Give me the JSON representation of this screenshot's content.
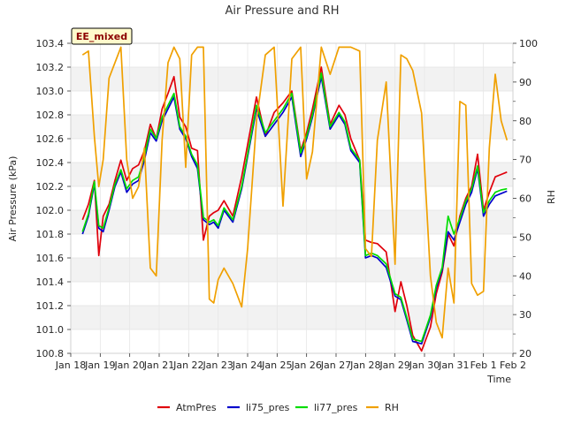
{
  "chart_data": {
    "type": "line",
    "title": "Air Pressure and RH",
    "xlabel": "Time",
    "ylabel_left": "Air Pressure (kPa)",
    "ylabel_right": "RH",
    "site_tag": "EE_mixed",
    "xlim": [
      0,
      15
    ],
    "ylim_left": [
      100.8,
      103.4
    ],
    "ylim_right": [
      20,
      100
    ],
    "x_ticks": [
      {
        "x": 0,
        "label": "Jan 18"
      },
      {
        "x": 1,
        "label": "Jan 19"
      },
      {
        "x": 2,
        "label": "Jan 20"
      },
      {
        "x": 3,
        "label": "Jan 21"
      },
      {
        "x": 4,
        "label": "Jan 22"
      },
      {
        "x": 5,
        "label": "Jan 23"
      },
      {
        "x": 6,
        "label": "Jan 24"
      },
      {
        "x": 7,
        "label": "Jan 25"
      },
      {
        "x": 8,
        "label": "Jan 26"
      },
      {
        "x": 9,
        "label": "Jan 27"
      },
      {
        "x": 10,
        "label": "Jan 28"
      },
      {
        "x": 11,
        "label": "Jan 29"
      },
      {
        "x": 12,
        "label": "Jan 30"
      },
      {
        "x": 13,
        "label": "Jan 31"
      },
      {
        "x": 14,
        "label": "Feb 1"
      },
      {
        "x": 15,
        "label": "Feb 2"
      }
    ],
    "y_ticks_left": [
      "100.8",
      "101.0",
      "101.2",
      "101.4",
      "101.6",
      "101.8",
      "102.0",
      "102.2",
      "102.4",
      "102.6",
      "102.8",
      "103.0",
      "103.2",
      "103.4"
    ],
    "y_ticks_right": [
      "20",
      "30",
      "40",
      "50",
      "60",
      "70",
      "80",
      "90",
      "100"
    ],
    "x": [
      0.4,
      0.6,
      0.8,
      0.95,
      1.1,
      1.3,
      1.5,
      1.7,
      1.9,
      2.1,
      2.3,
      2.5,
      2.7,
      2.9,
      3.1,
      3.3,
      3.5,
      3.7,
      3.9,
      4.1,
      4.3,
      4.5,
      4.7,
      4.85,
      5.0,
      5.2,
      5.5,
      5.8,
      6.0,
      6.3,
      6.6,
      6.9,
      7.2,
      7.5,
      7.8,
      8.0,
      8.2,
      8.5,
      8.8,
      9.1,
      9.3,
      9.5,
      9.8,
      10.0,
      10.2,
      10.4,
      10.7,
      11.0,
      11.2,
      11.4,
      11.6,
      11.9,
      12.2,
      12.4,
      12.6,
      12.8,
      13.0,
      13.2,
      13.4,
      13.6,
      13.8,
      14.0,
      14.2,
      14.4,
      14.6,
      14.8
    ],
    "series": [
      {
        "name": "AtmPres",
        "color": "#e0000b",
        "axis": "left",
        "values": [
          101.92,
          102.05,
          102.25,
          101.62,
          101.95,
          102.05,
          102.25,
          102.42,
          102.25,
          102.35,
          102.38,
          102.5,
          102.72,
          102.6,
          102.85,
          102.98,
          103.12,
          102.78,
          102.7,
          102.52,
          102.5,
          101.75,
          101.95,
          101.98,
          102.0,
          102.08,
          101.95,
          102.28,
          102.55,
          102.95,
          102.62,
          102.82,
          102.9,
          103.0,
          102.5,
          102.65,
          102.85,
          103.2,
          102.72,
          102.88,
          102.8,
          102.6,
          102.42,
          101.75,
          101.73,
          101.72,
          101.65,
          101.15,
          101.4,
          101.2,
          100.95,
          100.82,
          101.02,
          101.3,
          101.48,
          101.8,
          101.7,
          101.95,
          102.1,
          102.2,
          102.47,
          102.0,
          102.15,
          102.28,
          102.3,
          102.32
        ]
      },
      {
        "name": "li75_pres",
        "color": "#0000cc",
        "axis": "left",
        "values": [
          101.8,
          101.95,
          102.22,
          101.85,
          101.82,
          102.0,
          102.2,
          102.32,
          102.15,
          102.22,
          102.25,
          102.42,
          102.65,
          102.58,
          102.75,
          102.85,
          102.95,
          102.68,
          102.6,
          102.45,
          102.35,
          101.92,
          101.88,
          101.9,
          101.85,
          102.0,
          101.9,
          102.18,
          102.45,
          102.85,
          102.62,
          102.72,
          102.82,
          102.95,
          102.45,
          102.6,
          102.78,
          103.12,
          102.68,
          102.8,
          102.72,
          102.5,
          102.4,
          101.6,
          101.62,
          101.6,
          101.52,
          101.28,
          101.25,
          101.08,
          100.9,
          100.88,
          101.1,
          101.35,
          101.5,
          101.82,
          101.75,
          101.9,
          102.05,
          102.15,
          102.35,
          101.95,
          102.05,
          102.12,
          102.14,
          102.16
        ]
      },
      {
        "name": "li77_pres",
        "color": "#00dd00",
        "axis": "left",
        "values": [
          101.82,
          101.97,
          102.24,
          101.87,
          101.85,
          102.02,
          102.22,
          102.34,
          102.18,
          102.25,
          102.28,
          102.45,
          102.68,
          102.6,
          102.78,
          102.88,
          102.98,
          102.7,
          102.62,
          102.47,
          102.38,
          101.94,
          101.9,
          101.92,
          101.87,
          102.02,
          101.92,
          102.2,
          102.47,
          102.88,
          102.65,
          102.75,
          102.85,
          102.98,
          102.48,
          102.62,
          102.8,
          103.15,
          102.7,
          102.82,
          102.74,
          102.52,
          102.42,
          101.62,
          101.64,
          101.62,
          101.55,
          101.3,
          101.27,
          101.1,
          100.92,
          100.9,
          101.12,
          101.37,
          101.52,
          101.95,
          101.8,
          101.93,
          102.08,
          102.18,
          102.37,
          101.98,
          102.08,
          102.15,
          102.17,
          102.18
        ]
      },
      {
        "name": "RH",
        "color": "#f0a000",
        "axis": "right",
        "values": [
          97,
          98,
          76,
          63,
          70,
          91,
          95,
          99,
          70,
          60,
          63,
          73,
          42,
          40,
          75,
          95,
          99,
          96,
          68,
          97,
          99,
          99,
          34,
          33,
          39,
          42,
          38,
          32,
          47,
          80,
          97,
          99,
          58,
          96,
          99,
          65,
          72,
          99,
          92,
          99,
          99,
          99,
          98,
          47,
          45,
          75,
          90,
          43,
          97,
          96,
          93,
          82,
          40,
          28,
          24,
          42,
          33,
          85,
          84,
          38,
          35,
          36,
          73,
          92,
          80,
          75
        ]
      }
    ]
  }
}
